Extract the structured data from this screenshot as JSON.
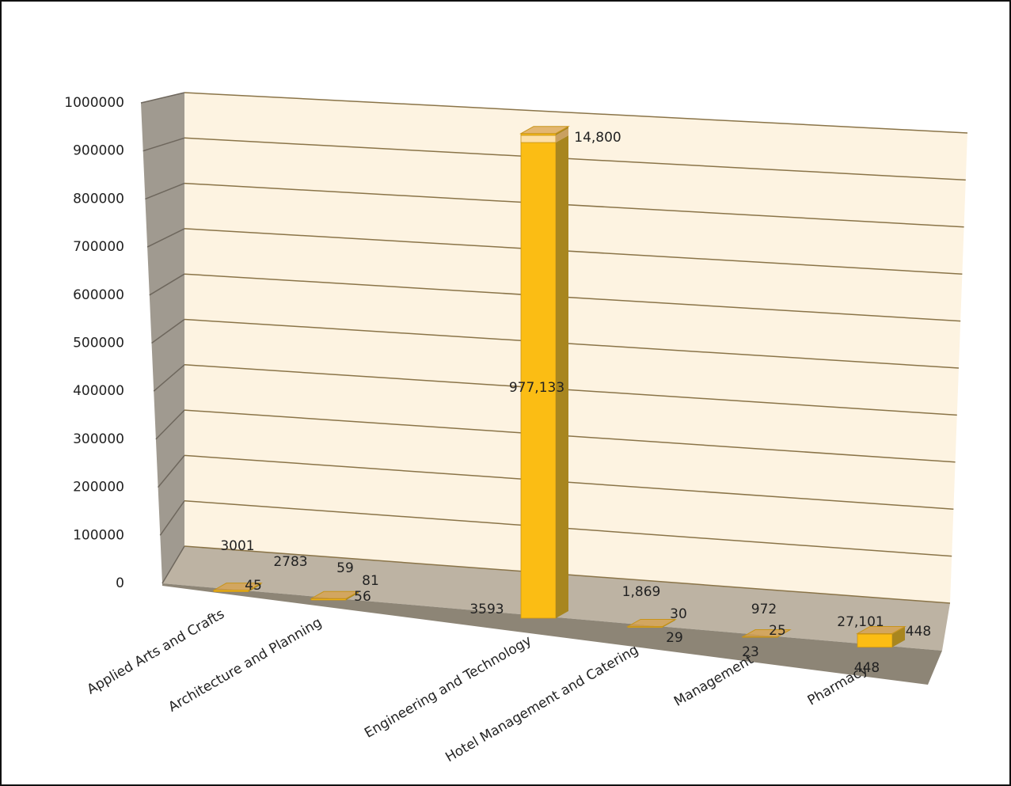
{
  "chart_data": {
    "type": "bar3d",
    "categories": [
      "Applied Arts and Crafts",
      "Architecture and Planning",
      "Engineering and Technology",
      "Hotel Management and Catering",
      "Management",
      "Pharmacy"
    ],
    "series": [
      {
        "color": "#fbbd14",
        "values": [
          3001,
          2783,
          977133,
          1869,
          972,
          27101
        ],
        "value_labels": [
          "3001",
          "2783",
          "977,133",
          "1,869",
          "972",
          "27,101"
        ]
      },
      {
        "color": "#fde0a8",
        "values": [
          45,
          56,
          14800,
          29,
          23,
          448
        ],
        "value_labels": [
          "45",
          "56",
          "14,800",
          "29",
          "23",
          "448"
        ]
      },
      {
        "color": "#fbbd14",
        "values": [
          null,
          59,
          3593,
          30,
          25,
          448
        ]
      },
      {
        "color": "#fbbd14",
        "values": [
          null,
          81,
          null,
          null,
          null,
          null
        ]
      }
    ],
    "ylim": [
      0,
      1000000
    ],
    "yticks": [
      0,
      100000,
      200000,
      300000,
      400000,
      500000,
      600000,
      700000,
      800000,
      900000,
      1000000
    ],
    "grid": true
  }
}
